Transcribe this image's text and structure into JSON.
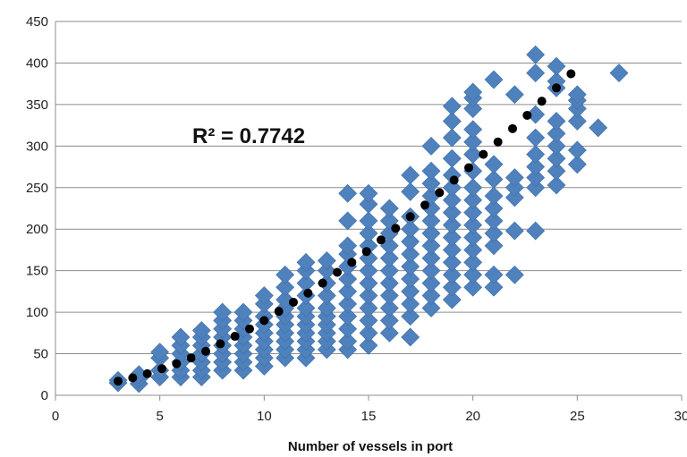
{
  "chart_data": {
    "type": "scatter",
    "title": "",
    "xlabel": "Number of vessels in port",
    "ylabel": "",
    "xlim": [
      0,
      30
    ],
    "ylim": [
      0,
      450
    ],
    "x_ticks": [
      "0",
      "5",
      "10",
      "15",
      "20",
      "25",
      "30"
    ],
    "y_ticks": [
      "0",
      "50",
      "100",
      "150",
      "200",
      "250",
      "300",
      "350",
      "400",
      "450"
    ],
    "grid": "horizontal",
    "legend": "none",
    "annotation": "R² = 0.7742",
    "series": [
      {
        "marker": "diamond",
        "color": "#4F81BD",
        "points": [
          [
            3,
            15
          ],
          [
            3,
            18
          ],
          [
            4,
            14
          ],
          [
            4,
            20
          ],
          [
            4,
            25
          ],
          [
            5,
            22
          ],
          [
            5,
            30
          ],
          [
            5,
            45
          ],
          [
            5,
            52
          ],
          [
            6,
            22
          ],
          [
            6,
            30
          ],
          [
            6,
            40
          ],
          [
            6,
            50
          ],
          [
            6,
            60
          ],
          [
            6,
            70
          ],
          [
            7,
            22
          ],
          [
            7,
            30
          ],
          [
            7,
            40
          ],
          [
            7,
            50
          ],
          [
            7,
            60
          ],
          [
            7,
            70
          ],
          [
            7,
            78
          ],
          [
            8,
            30
          ],
          [
            8,
            40
          ],
          [
            8,
            50
          ],
          [
            8,
            60
          ],
          [
            8,
            70
          ],
          [
            8,
            80
          ],
          [
            8,
            90
          ],
          [
            8,
            100
          ],
          [
            9,
            30
          ],
          [
            9,
            40
          ],
          [
            9,
            50
          ],
          [
            9,
            60
          ],
          [
            9,
            70
          ],
          [
            9,
            80
          ],
          [
            9,
            90
          ],
          [
            9,
            100
          ],
          [
            10,
            35
          ],
          [
            10,
            45
          ],
          [
            10,
            55
          ],
          [
            10,
            65
          ],
          [
            10,
            75
          ],
          [
            10,
            85
          ],
          [
            10,
            95
          ],
          [
            10,
            110
          ],
          [
            10,
            120
          ],
          [
            11,
            45
          ],
          [
            11,
            55
          ],
          [
            11,
            65
          ],
          [
            11,
            75
          ],
          [
            11,
            85
          ],
          [
            11,
            95
          ],
          [
            11,
            105
          ],
          [
            11,
            115
          ],
          [
            11,
            130
          ],
          [
            11,
            145
          ],
          [
            12,
            45
          ],
          [
            12,
            55
          ],
          [
            12,
            65
          ],
          [
            12,
            75
          ],
          [
            12,
            85
          ],
          [
            12,
            95
          ],
          [
            12,
            105
          ],
          [
            12,
            120
          ],
          [
            12,
            135
          ],
          [
            12,
            150
          ],
          [
            12,
            160
          ],
          [
            13,
            55
          ],
          [
            13,
            65
          ],
          [
            13,
            75
          ],
          [
            13,
            85
          ],
          [
            13,
            95
          ],
          [
            13,
            105
          ],
          [
            13,
            120
          ],
          [
            13,
            135
          ],
          [
            13,
            150
          ],
          [
            13,
            162
          ],
          [
            14,
            55
          ],
          [
            14,
            65
          ],
          [
            14,
            80
          ],
          [
            14,
            95
          ],
          [
            14,
            110
          ],
          [
            14,
            125
          ],
          [
            14,
            140
          ],
          [
            14,
            155
          ],
          [
            14,
            170
          ],
          [
            14,
            180
          ],
          [
            14,
            210
          ],
          [
            14,
            243
          ],
          [
            15,
            60
          ],
          [
            15,
            75
          ],
          [
            15,
            90
          ],
          [
            15,
            105
          ],
          [
            15,
            120
          ],
          [
            15,
            135
          ],
          [
            15,
            150
          ],
          [
            15,
            165
          ],
          [
            15,
            180
          ],
          [
            15,
            195
          ],
          [
            15,
            210
          ],
          [
            15,
            230
          ],
          [
            15,
            243
          ],
          [
            16,
            75
          ],
          [
            16,
            90
          ],
          [
            16,
            105
          ],
          [
            16,
            120
          ],
          [
            16,
            135
          ],
          [
            16,
            150
          ],
          [
            16,
            165
          ],
          [
            16,
            180
          ],
          [
            16,
            195
          ],
          [
            16,
            210
          ],
          [
            16,
            225
          ],
          [
            17,
            70
          ],
          [
            17,
            95
          ],
          [
            17,
            110
          ],
          [
            17,
            125
          ],
          [
            17,
            140
          ],
          [
            17,
            155
          ],
          [
            17,
            170
          ],
          [
            17,
            185
          ],
          [
            17,
            200
          ],
          [
            17,
            215
          ],
          [
            17,
            245
          ],
          [
            17,
            265
          ],
          [
            18,
            105
          ],
          [
            18,
            120
          ],
          [
            18,
            135
          ],
          [
            18,
            150
          ],
          [
            18,
            165
          ],
          [
            18,
            180
          ],
          [
            18,
            195
          ],
          [
            18,
            210
          ],
          [
            18,
            225
          ],
          [
            18,
            240
          ],
          [
            18,
            255
          ],
          [
            18,
            270
          ],
          [
            18,
            300
          ],
          [
            19,
            115
          ],
          [
            19,
            130
          ],
          [
            19,
            145
          ],
          [
            19,
            160
          ],
          [
            19,
            175
          ],
          [
            19,
            190
          ],
          [
            19,
            205
          ],
          [
            19,
            220
          ],
          [
            19,
            235
          ],
          [
            19,
            250
          ],
          [
            19,
            265
          ],
          [
            19,
            285
          ],
          [
            19,
            310
          ],
          [
            19,
            330
          ],
          [
            19,
            348
          ],
          [
            20,
            130
          ],
          [
            20,
            145
          ],
          [
            20,
            160
          ],
          [
            20,
            175
          ],
          [
            20,
            190
          ],
          [
            20,
            205
          ],
          [
            20,
            220
          ],
          [
            20,
            235
          ],
          [
            20,
            250
          ],
          [
            20,
            270
          ],
          [
            20,
            290
          ],
          [
            20,
            305
          ],
          [
            20,
            320
          ],
          [
            20,
            345
          ],
          [
            20,
            358
          ],
          [
            20,
            365
          ],
          [
            21,
            130
          ],
          [
            21,
            145
          ],
          [
            21,
            180
          ],
          [
            21,
            195
          ],
          [
            21,
            210
          ],
          [
            21,
            225
          ],
          [
            21,
            240
          ],
          [
            21,
            260
          ],
          [
            21,
            278
          ],
          [
            21,
            380
          ],
          [
            22,
            145
          ],
          [
            22,
            198
          ],
          [
            22,
            238
          ],
          [
            22,
            250
          ],
          [
            22,
            262
          ],
          [
            22,
            362
          ],
          [
            23,
            198
          ],
          [
            23,
            250
          ],
          [
            23,
            262
          ],
          [
            23,
            275
          ],
          [
            23,
            290
          ],
          [
            23,
            310
          ],
          [
            23,
            338
          ],
          [
            23,
            388
          ],
          [
            23,
            410
          ],
          [
            24,
            253
          ],
          [
            24,
            270
          ],
          [
            24,
            285
          ],
          [
            24,
            300
          ],
          [
            24,
            315
          ],
          [
            24,
            330
          ],
          [
            24,
            370
          ],
          [
            24,
            378
          ],
          [
            24,
            396
          ],
          [
            25,
            278
          ],
          [
            25,
            295
          ],
          [
            25,
            330
          ],
          [
            25,
            345
          ],
          [
            25,
            355
          ],
          [
            25,
            362
          ],
          [
            26,
            322
          ],
          [
            27,
            388
          ]
        ]
      },
      {
        "marker": "circle",
        "color": "#000000",
        "points": [
          [
            3,
            17
          ],
          [
            3.7,
            21
          ],
          [
            4.4,
            26
          ],
          [
            5.1,
            32
          ],
          [
            5.8,
            38
          ],
          [
            6.5,
            45
          ],
          [
            7.2,
            53
          ],
          [
            7.9,
            62
          ],
          [
            8.6,
            71
          ],
          [
            9.3,
            80
          ],
          [
            10,
            90
          ],
          [
            10.7,
            101
          ],
          [
            11.4,
            112
          ],
          [
            12.1,
            123
          ],
          [
            12.8,
            135
          ],
          [
            13.5,
            148
          ],
          [
            14.2,
            160
          ],
          [
            14.9,
            173
          ],
          [
            15.6,
            187
          ],
          [
            16.3,
            201
          ],
          [
            17,
            215
          ],
          [
            17.7,
            229
          ],
          [
            18.4,
            244
          ],
          [
            19.1,
            259
          ],
          [
            19.8,
            274
          ],
          [
            20.5,
            290
          ],
          [
            21.2,
            305
          ],
          [
            21.9,
            321
          ],
          [
            22.6,
            337
          ],
          [
            23.3,
            354
          ],
          [
            24,
            370
          ],
          [
            24.7,
            387
          ]
        ]
      }
    ]
  }
}
